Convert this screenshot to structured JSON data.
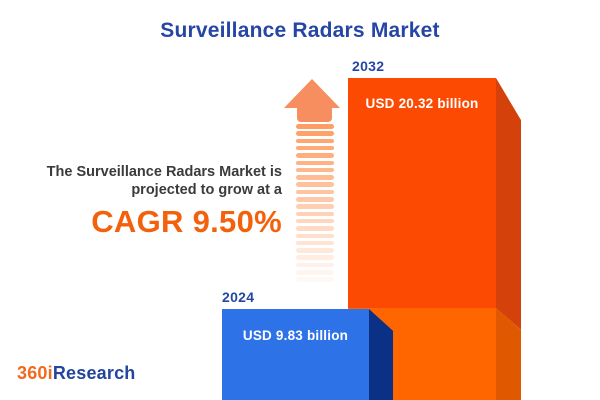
{
  "header": {
    "title": "Surveillance Radars Market"
  },
  "annotation": {
    "line1": "The Surveillance Radars Market is",
    "line2": "projected to grow at a",
    "cagr": "CAGR 9.50%"
  },
  "arrow": {
    "icon": "growth-arrow-up-icon",
    "stripe_count": 22
  },
  "logo": {
    "part_orange": "360i",
    "part_blue": "Research"
  },
  "colors": {
    "title_blue": "#2546A4",
    "body_text": "#3B3B3B",
    "cagr_orange": "#F4610D",
    "arrow_salmon": "#F78E60",
    "bar_2024_front": "#2E72E8",
    "bar_2024_side": "#0B3187",
    "bar_2032_front_top": "#FC4A03",
    "bar_2032_front_bottom": "#FF6600",
    "bar_2032_side_top": "#D4410A",
    "bar_2032_side_bottom": "#E05800",
    "logo_orange": "#F26A1E",
    "logo_blue": "#24459E"
  },
  "chart_data": {
    "type": "bar",
    "title": "Surveillance Radars Market",
    "unit": "USD billion",
    "categories": [
      "2024",
      "2032"
    ],
    "values": [
      9.83,
      20.32
    ],
    "cagr_percent": 9.5,
    "legend": "none",
    "grid": false,
    "bars": [
      {
        "year": "2024",
        "value": 9.83,
        "label": "USD 9.83 billion",
        "color_front": "#2E72E8",
        "color_side": "#0B3187"
      },
      {
        "year": "2032",
        "value": 20.32,
        "label": "USD 20.32 billion",
        "color_front": "#FC4A03",
        "color_side": "#D4410A"
      }
    ]
  }
}
